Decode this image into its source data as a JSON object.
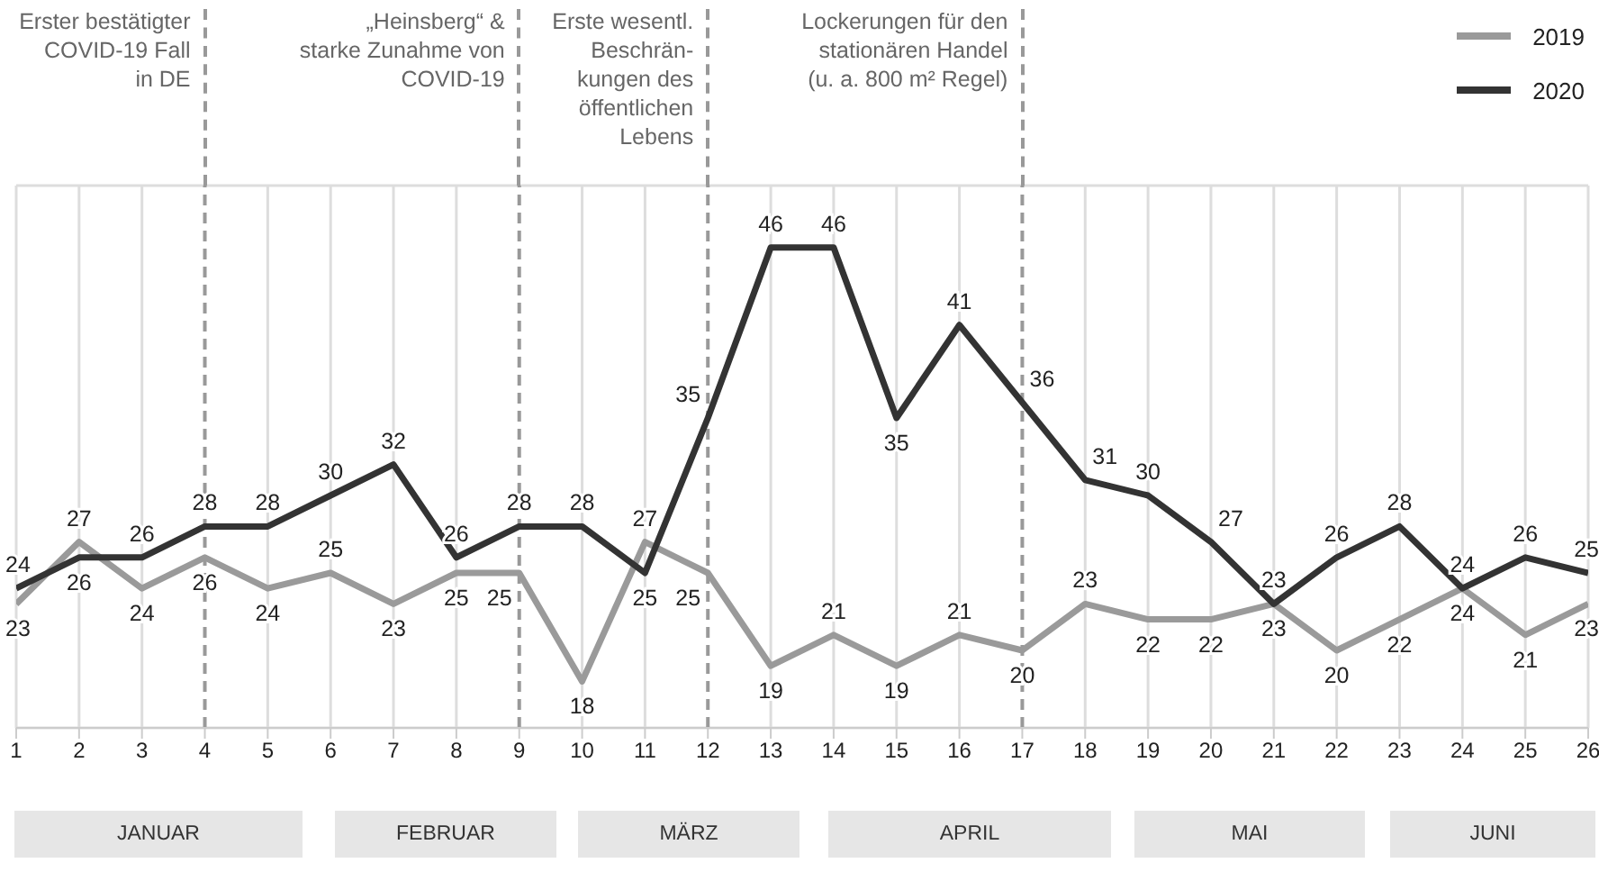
{
  "chart_data": {
    "type": "line",
    "x": [
      1,
      2,
      3,
      4,
      5,
      6,
      7,
      8,
      9,
      10,
      11,
      12,
      13,
      14,
      15,
      16,
      17,
      18,
      19,
      20,
      21,
      22,
      23,
      24,
      25,
      26
    ],
    "series": [
      {
        "name": "2019",
        "color": "#9a9a9a",
        "values": [
          23,
          27,
          24,
          26,
          24,
          25,
          23,
          25,
          25,
          18,
          27,
          25,
          19,
          21,
          19,
          21,
          20,
          23,
          22,
          22,
          23,
          20,
          22,
          24,
          21,
          23
        ]
      },
      {
        "name": "2020",
        "color": "#333333",
        "values": [
          24,
          26,
          26,
          28,
          28,
          30,
          32,
          26,
          28,
          28,
          25,
          35,
          46,
          46,
          35,
          41,
          36,
          31,
          30,
          27,
          23,
          26,
          28,
          24,
          26,
          25
        ]
      }
    ],
    "xlim": [
      1,
      26
    ],
    "xticks": [
      1,
      2,
      3,
      4,
      5,
      6,
      7,
      8,
      9,
      10,
      11,
      12,
      13,
      14,
      15,
      16,
      17,
      18,
      19,
      20,
      21,
      22,
      23,
      24,
      25,
      26
    ],
    "ylim": [
      15,
      50
    ],
    "tick_labels": "x",
    "grid": true,
    "legend": "top right",
    "marker": "none",
    "line_style": "solid",
    "data_labels": true,
    "ref_lines": [
      {
        "axis": "x",
        "value": 4,
        "label": "Erster bestätigter\nCOVID-19 Fall\nin DE",
        "color": "#999999",
        "line_style": "dashed"
      },
      {
        "axis": "x",
        "value": 9,
        "label": "„Heinsberg“ &\nstarke Zunahme von\nCOVID-19",
        "color": "#999999",
        "line_style": "dashed"
      },
      {
        "axis": "x",
        "value": 12,
        "label": "Erste wesentl.\nBeschrän-\nkungen des\nöffentlichen\nLebens",
        "color": "#999999",
        "line_style": "dashed"
      },
      {
        "axis": "x",
        "value": 17,
        "label": "Lockerungen für den\nstationären Handel\n(u. a. 800 m² Regel)",
        "color": "#999999",
        "line_style": "dashed"
      }
    ],
    "annotations": [
      "JANUAR",
      "FEBRUAR",
      "MÄRZ",
      "APRIL",
      "MAI",
      "JUNI"
    ]
  }
}
